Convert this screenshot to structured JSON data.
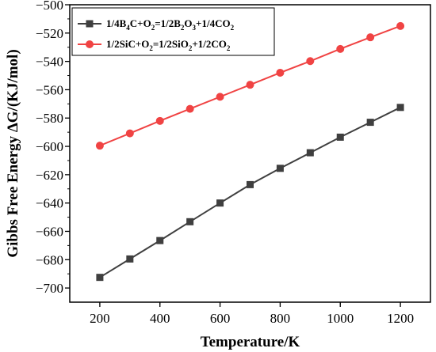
{
  "chart_data": {
    "type": "line",
    "xlabel": "Temperature/K",
    "ylabel": "Gibbs Free Energy ΔG/(KJ/mol)",
    "xlim": [
      100,
      1300
    ],
    "ylim": [
      -710,
      -500
    ],
    "xticks": [
      200,
      400,
      600,
      800,
      1000,
      1200
    ],
    "yticks": [
      -700,
      -680,
      -660,
      -640,
      -620,
      -600,
      -580,
      -560,
      -540,
      -520,
      -500
    ],
    "legend_position": "top-left",
    "grid": false,
    "x": [
      200,
      300,
      400,
      500,
      600,
      700,
      800,
      900,
      1000,
      1100,
      1200
    ],
    "series": [
      {
        "name": "1/4B4C+O2=1/2B2O3+1/4CO2",
        "legend_parts": [
          {
            "t": "1/4B",
            "sub": false
          },
          {
            "t": "4",
            "sub": true
          },
          {
            "t": "C+O",
            "sub": false
          },
          {
            "t": "2",
            "sub": true
          },
          {
            "t": "=1/2B",
            "sub": false
          },
          {
            "t": "2",
            "sub": true
          },
          {
            "t": "O",
            "sub": false
          },
          {
            "t": "3",
            "sub": true
          },
          {
            "t": "+1/4CO",
            "sub": false
          },
          {
            "t": "2",
            "sub": true
          }
        ],
        "color": "#3f3f3f",
        "marker": "square",
        "values": [
          -692.5,
          -679.5,
          -666.5,
          -653.2,
          -640.0,
          -627.0,
          -615.5,
          -604.5,
          -593.5,
          -583.0,
          -572.5
        ]
      },
      {
        "name": "1/2SiC+O2=1/2SiO2+1/2CO2",
        "legend_parts": [
          {
            "t": "1/2SiC+O",
            "sub": false
          },
          {
            "t": "2",
            "sub": true
          },
          {
            "t": "=1/2SiO",
            "sub": false
          },
          {
            "t": "2",
            "sub": true
          },
          {
            "t": "+1/2CO",
            "sub": false
          },
          {
            "t": "2",
            "sub": true
          }
        ],
        "color": "#f04343",
        "marker": "circle",
        "values": [
          -599.5,
          -590.8,
          -582.0,
          -573.5,
          -565.0,
          -556.5,
          -548.0,
          -539.8,
          -531.2,
          -523.0,
          -515.0
        ]
      }
    ]
  }
}
